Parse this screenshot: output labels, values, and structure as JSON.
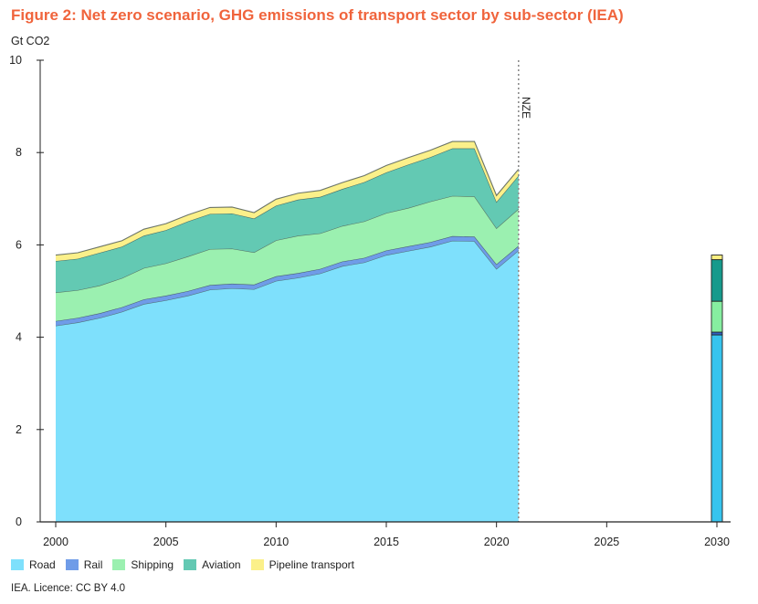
{
  "chart_data": {
    "type": "area",
    "title": "Figure 2: Net zero scenario, GHG emissions of transport sector by sub-sector (IEA)",
    "ylabel": "Gt CO2",
    "ylim": [
      0,
      10
    ],
    "xlim": [
      2000,
      2030
    ],
    "yticks": [
      0,
      2,
      4,
      6,
      8,
      10
    ],
    "xticks": [
      2000,
      2005,
      2010,
      2015,
      2020,
      2025,
      2030
    ],
    "grid": false,
    "legend_position": "bottom-left",
    "annotation": "NZE",
    "annotation_x": 2021,
    "x": [
      2000,
      2001,
      2002,
      2003,
      2004,
      2005,
      2006,
      2007,
      2008,
      2009,
      2010,
      2011,
      2012,
      2013,
      2014,
      2015,
      2016,
      2017,
      2018,
      2019,
      2020,
      2021
    ],
    "series": [
      {
        "name": "Road",
        "color": "#7ee0fc",
        "values": [
          4.25,
          4.32,
          4.42,
          4.55,
          4.72,
          4.8,
          4.9,
          5.03,
          5.06,
          5.04,
          5.22,
          5.29,
          5.38,
          5.54,
          5.62,
          5.78,
          5.87,
          5.96,
          6.09,
          6.08,
          5.48,
          5.88
        ]
      },
      {
        "name": "Rail",
        "color": "#6f9ce8",
        "values": [
          0.1,
          0.1,
          0.1,
          0.1,
          0.1,
          0.1,
          0.1,
          0.1,
          0.1,
          0.1,
          0.1,
          0.1,
          0.1,
          0.1,
          0.1,
          0.1,
          0.1,
          0.1,
          0.1,
          0.1,
          0.1,
          0.1
        ]
      },
      {
        "name": "Shipping",
        "color": "#9bf0b0",
        "values": [
          0.62,
          0.6,
          0.6,
          0.63,
          0.68,
          0.7,
          0.75,
          0.78,
          0.76,
          0.7,
          0.78,
          0.81,
          0.77,
          0.77,
          0.79,
          0.81,
          0.83,
          0.88,
          0.87,
          0.87,
          0.78,
          0.8
        ]
      },
      {
        "name": "Aviation",
        "color": "#63c9b3",
        "values": [
          0.68,
          0.68,
          0.71,
          0.68,
          0.7,
          0.72,
          0.76,
          0.76,
          0.76,
          0.73,
          0.75,
          0.78,
          0.79,
          0.8,
          0.85,
          0.88,
          0.94,
          0.96,
          1.03,
          1.04,
          0.57,
          0.72
        ]
      },
      {
        "name": "Pipeline transport",
        "color": "#fbf08a",
        "values": [
          0.13,
          0.13,
          0.13,
          0.13,
          0.14,
          0.14,
          0.14,
          0.14,
          0.14,
          0.13,
          0.14,
          0.14,
          0.14,
          0.14,
          0.14,
          0.15,
          0.15,
          0.15,
          0.15,
          0.15,
          0.14,
          0.14
        ]
      }
    ],
    "bar_2030": {
      "x": 2030,
      "segments": [
        {
          "name": "Road",
          "color": "#37c4ee",
          "value": 4.05
        },
        {
          "name": "Rail",
          "color": "#2f5fc2",
          "value": 0.06
        },
        {
          "name": "Shipping",
          "color": "#86eea0",
          "value": 0.67
        },
        {
          "name": "Aviation",
          "color": "#169a8c",
          "value": 0.9
        },
        {
          "name": "Pipeline transport",
          "color": "#fbef80",
          "value": 0.1
        }
      ]
    }
  },
  "legend": [
    {
      "label": "Road",
      "color": "#7ee0fc"
    },
    {
      "label": "Rail",
      "color": "#6f9ce8"
    },
    {
      "label": "Shipping",
      "color": "#9bf0b0"
    },
    {
      "label": "Aviation",
      "color": "#63c9b3"
    },
    {
      "label": "Pipeline transport",
      "color": "#fbf08a"
    }
  ],
  "source": "IEA. Licence: CC BY 4.0"
}
